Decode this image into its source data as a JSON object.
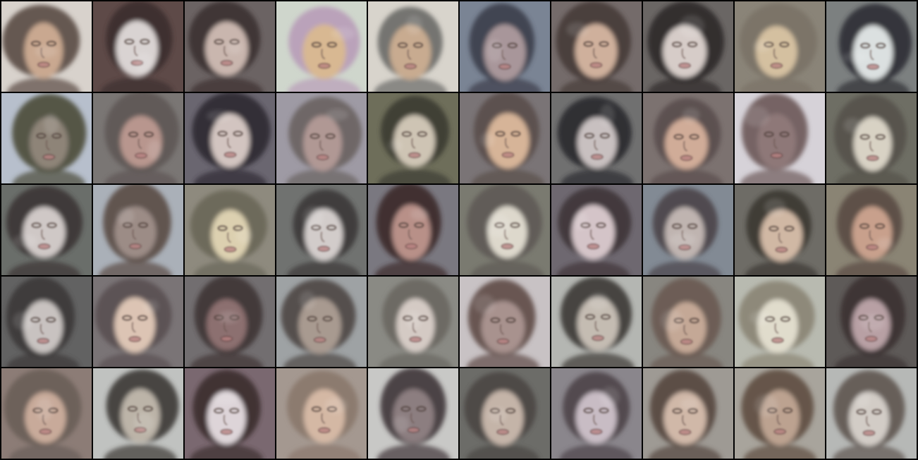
{
  "grid": {
    "rows": 5,
    "columns": 10,
    "tiles": [
      {
        "bg": "#d8d2cc",
        "hair": "#5a4a42",
        "skin": "#c9a890"
      },
      {
        "bg": "#5e4a48",
        "hair": "#3a2c2c",
        "skin": "#d9d3d2"
      },
      {
        "bg": "#6b6363",
        "hair": "#3b3131",
        "skin": "#c9b6ae"
      },
      {
        "bg": "#cfd6cc",
        "hair": "#b89cb8",
        "skin": "#d8b892"
      },
      {
        "bg": "#d8d4cc",
        "hair": "#6a6a66",
        "skin": "#c8ab90"
      },
      {
        "bg": "#7a8494",
        "hair": "#3a3d4a",
        "skin": "#a8969a"
      },
      {
        "bg": "#746b6a",
        "hair": "#463a38",
        "skin": "#cfb09c"
      },
      {
        "bg": "#6a6664",
        "hair": "#2e2a2a",
        "skin": "#d6ccc8"
      },
      {
        "bg": "#8a8478",
        "hair": "#7a7266",
        "skin": "#d4c0a0"
      },
      {
        "bg": "#7c8080",
        "hair": "#2e2f33",
        "skin": "#dbe0e0"
      },
      {
        "bg": "#b7bfcc",
        "hair": "#4a4a38",
        "skin": "#8e8478"
      },
      {
        "bg": "#7a7674",
        "hair": "#5e5654",
        "skin": "#b8968e"
      },
      {
        "bg": "#6a6670",
        "hair": "#2f2a32",
        "skin": "#d2c4c0"
      },
      {
        "bg": "#9e9aa4",
        "hair": "#6a6260",
        "skin": "#b09894"
      },
      {
        "bg": "#6e6e5a",
        "hair": "#3c3a32",
        "skin": "#cec4b4"
      },
      {
        "bg": "#7a7476",
        "hair": "#5a4e4a",
        "skin": "#d6b498"
      },
      {
        "bg": "#707070",
        "hair": "#2a2a2c",
        "skin": "#c8c0c0"
      },
      {
        "bg": "#7c7270",
        "hair": "#5a4c4c",
        "skin": "#d0ac98"
      },
      {
        "bg": "#d6d2d8",
        "hair": "#6c5858",
        "skin": "#8e7878"
      },
      {
        "bg": "#6e6e64",
        "hair": "#54524a",
        "skin": "#d8d2c4"
      },
      {
        "bg": "#6a6e6a",
        "hair": "#3a3434",
        "skin": "#cfc8c6"
      },
      {
        "bg": "#aab0b8",
        "hair": "#5a4a44",
        "skin": "#9c8c86"
      },
      {
        "bg": "#8e8a7e",
        "hair": "#6a6658",
        "skin": "#dcd0b0"
      },
      {
        "bg": "#707270",
        "hair": "#3a3636",
        "skin": "#d2ccca"
      },
      {
        "bg": "#7a7880",
        "hair": "#3a2a2a",
        "skin": "#b89088"
      },
      {
        "bg": "#7a7a70",
        "hair": "#5e5a54",
        "skin": "#ddd8cc"
      },
      {
        "bg": "#6e6870",
        "hair": "#3e3438",
        "skin": "#d4c4c8"
      },
      {
        "bg": "#828a94",
        "hair": "#4a4448",
        "skin": "#bfb4b0"
      },
      {
        "bg": "#6e6c66",
        "hair": "#3a3632",
        "skin": "#d0b8a4"
      },
      {
        "bg": "#8a8474",
        "hair": "#5a4a44",
        "skin": "#c8a08c"
      },
      {
        "bg": "#626262",
        "hair": "#3a3636",
        "skin": "#c8c2c0"
      },
      {
        "bg": "#7a7476",
        "hair": "#5a5052",
        "skin": "#dcc4b4"
      },
      {
        "bg": "#726e70",
        "hair": "#3e3434",
        "skin": "#8c7070"
      },
      {
        "bg": "#9ea2a4",
        "hair": "#4c4644",
        "skin": "#a89a90"
      },
      {
        "bg": "#8a8a84",
        "hair": "#6a6660",
        "skin": "#d4cac4"
      },
      {
        "bg": "#c8c2c4",
        "hair": "#5e4a46",
        "skin": "#a8928e"
      },
      {
        "bg": "#b4b6b2",
        "hair": "#3a3634",
        "skin": "#c4bcb2"
      },
      {
        "bg": "#888680",
        "hair": "#6a5a52",
        "skin": "#c4a896"
      },
      {
        "bg": "#b8bab0",
        "hair": "#8a8474",
        "skin": "#e0dccc"
      },
      {
        "bg": "#5e5a58",
        "hair": "#3a3232",
        "skin": "#b8a0a4"
      },
      {
        "bg": "#8c7c76",
        "hair": "#6a5e58",
        "skin": "#c8aa9a"
      },
      {
        "bg": "#c0c2c0",
        "hair": "#3c3634",
        "skin": "#bcb4a8"
      },
      {
        "bg": "#7a6870",
        "hair": "#3a2c2e",
        "skin": "#ddd4d8"
      },
      {
        "bg": "#a49890",
        "hair": "#8a786c",
        "skin": "#d4b8a4"
      },
      {
        "bg": "#c8c8c6",
        "hair": "#3e3438",
        "skin": "#8c7e80"
      },
      {
        "bg": "#6c6c68",
        "hair": "#4a4644",
        "skin": "#c4b4a8"
      },
      {
        "bg": "#8a868c",
        "hair": "#4c4448",
        "skin": "#c8bcc4"
      },
      {
        "bg": "#9e9a94",
        "hair": "#54463e",
        "skin": "#d0b8a8"
      },
      {
        "bg": "#a8a49c",
        "hair": "#5e4c40",
        "skin": "#bca290"
      },
      {
        "bg": "#b6b8b6",
        "hair": "#5e5450",
        "skin": "#d2ccc6"
      }
    ]
  }
}
